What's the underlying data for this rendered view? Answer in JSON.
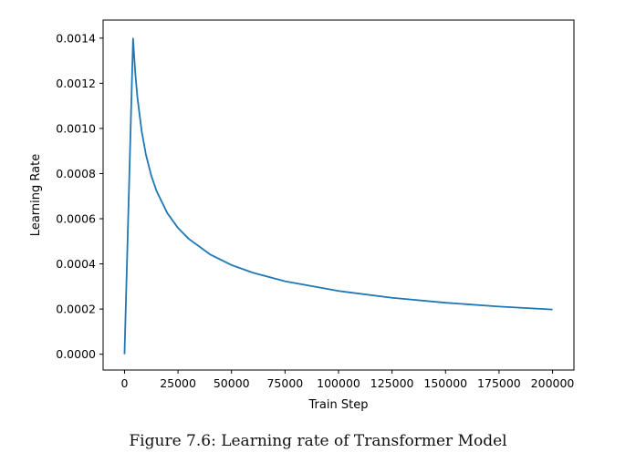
{
  "caption": "Figure 7.6: Learning rate of Transformer Model",
  "chart_data": {
    "type": "line",
    "title": "",
    "xlabel": "Train Step",
    "ylabel": "Learning Rate",
    "xlim": [
      -10000,
      210000
    ],
    "ylim": [
      -7e-05,
      0.00148
    ],
    "xticks": [
      0,
      25000,
      50000,
      75000,
      100000,
      125000,
      150000,
      175000,
      200000
    ],
    "xtick_labels": [
      "0",
      "25000",
      "50000",
      "75000",
      "100000",
      "125000",
      "150000",
      "175000",
      "200000"
    ],
    "yticks": [
      0.0,
      0.0002,
      0.0004,
      0.0006,
      0.0008,
      0.001,
      0.0012,
      0.0014
    ],
    "ytick_labels": [
      "0.0000",
      "0.0002",
      "0.0004",
      "0.0006",
      "0.0008",
      "0.0010",
      "0.0012",
      "0.0014"
    ],
    "grid": false,
    "series": [
      {
        "color": "#1f77b4",
        "x": [
          0,
          4000,
          5000,
          6000,
          8000,
          10000,
          12500,
          15000,
          20000,
          25000,
          30000,
          40000,
          50000,
          60000,
          75000,
          100000,
          125000,
          150000,
          175000,
          200000
        ],
        "y": [
          0.0,
          0.001398,
          0.00125,
          0.00114,
          0.000989,
          0.000884,
          0.000791,
          0.000722,
          0.000625,
          0.000559,
          0.000511,
          0.000442,
          0.000395,
          0.000361,
          0.000323,
          0.00028,
          0.00025,
          0.000228,
          0.000211,
          0.000198
        ]
      }
    ]
  }
}
